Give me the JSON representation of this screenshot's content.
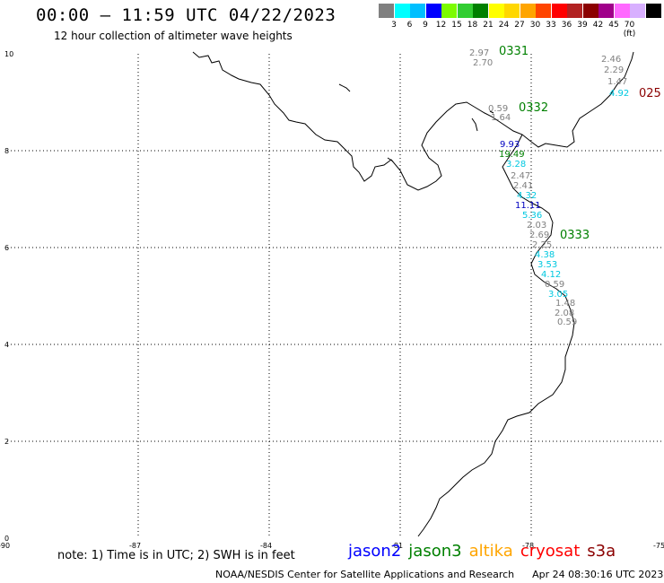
{
  "title": "00:00 – 11:59 UTC 04/22/2023",
  "subtitle": "12 hour collection of altimeter wave heights",
  "scale": {
    "colors": [
      "#808080",
      "#00ffff",
      "#00bfff",
      "#0000ff",
      "#7cfc00",
      "#32cd32",
      "#008000",
      "#ffff00",
      "#ffd700",
      "#ffa500",
      "#ff4500",
      "#ff0000",
      "#b22222",
      "#8b0000",
      "#a0008a",
      "#ff69ff",
      "#d8b0ff",
      "#000000"
    ],
    "labels": [
      "3",
      "6",
      "9",
      "12",
      "15",
      "18",
      "21",
      "24",
      "27",
      "30",
      "33",
      "36",
      "39",
      "42",
      "45",
      "70 (ft)"
    ]
  },
  "axes": {
    "x_ticks": [
      "-90",
      "-87",
      "-84",
      "-81",
      "-78",
      "-75"
    ],
    "y_ticks": [
      "10",
      "8",
      "6",
      "4",
      "2",
      "0"
    ]
  },
  "passes": [
    {
      "label": "0331",
      "color": "#008000"
    },
    {
      "label": "0332",
      "color": "#008000"
    },
    {
      "label": "0333",
      "color": "#008000"
    },
    {
      "label": "025",
      "color": "#8b0000"
    }
  ],
  "wave_heights": [
    {
      "v": "2.97",
      "c": "#808080"
    },
    {
      "v": "2.70",
      "c": "#808080"
    },
    {
      "v": "2.46",
      "c": "#808080"
    },
    {
      "v": "2.29",
      "c": "#808080"
    },
    {
      "v": "1.47",
      "c": "#808080"
    },
    {
      "v": "4.92",
      "c": "#00c8e0"
    },
    {
      "v": "0.59",
      "c": "#808080"
    },
    {
      "v": "1.64",
      "c": "#808080"
    },
    {
      "v": "9.93",
      "c": "#0000c0"
    },
    {
      "v": "19.49",
      "c": "#008000"
    },
    {
      "v": "3.28",
      "c": "#00c8e0"
    },
    {
      "v": "2.47",
      "c": "#808080"
    },
    {
      "v": "2.41",
      "c": "#808080"
    },
    {
      "v": "4.32",
      "c": "#00c8e0"
    },
    {
      "v": "11.11",
      "c": "#0000c0"
    },
    {
      "v": "5.36",
      "c": "#00c8e0"
    },
    {
      "v": "2.03",
      "c": "#808080"
    },
    {
      "v": "2.69",
      "c": "#808080"
    },
    {
      "v": "2.25",
      "c": "#808080"
    },
    {
      "v": "4.38",
      "c": "#00c8e0"
    },
    {
      "v": "3.53",
      "c": "#00c8e0"
    },
    {
      "v": "4.12",
      "c": "#00c8e0"
    },
    {
      "v": "0.59",
      "c": "#808080"
    },
    {
      "v": "3.05",
      "c": "#00c8e0"
    },
    {
      "v": "1.48",
      "c": "#808080"
    },
    {
      "v": "2.08",
      "c": "#808080"
    },
    {
      "v": "0.59",
      "c": "#808080"
    }
  ],
  "note": "note: 1) Time is in UTC; 2) SWH is in feet",
  "legend": [
    {
      "label": "jason2",
      "color": "#0000ff"
    },
    {
      "label": "jason3",
      "color": "#008000"
    },
    {
      "label": "altika",
      "color": "#ffa500"
    },
    {
      "label": "cryosat",
      "color": "#ff0000"
    },
    {
      "label": "s3a",
      "color": "#8b0000"
    }
  ],
  "credit": {
    "org": "NOAA/NESDIS Center for Satellite Applications and Research",
    "date": "Apr 24 08:30:16 UTC 2023"
  }
}
